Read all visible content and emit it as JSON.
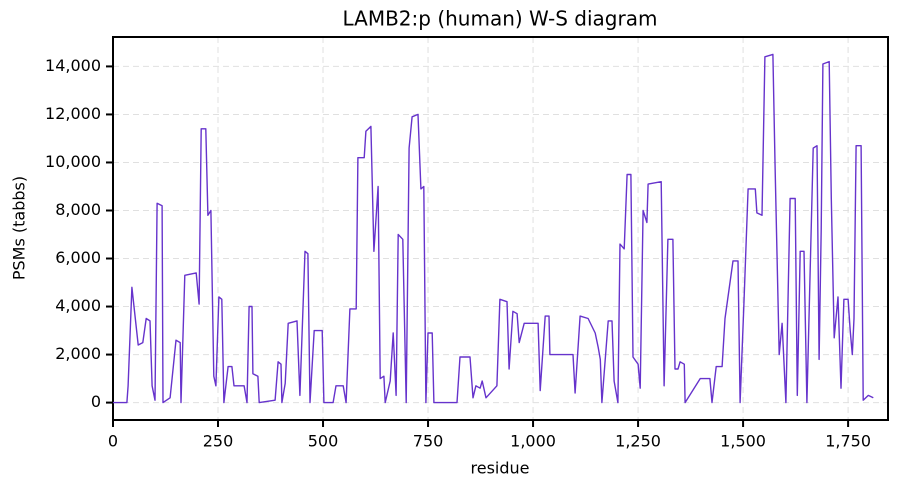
{
  "chart_data": {
    "type": "line",
    "title": "LAMB2:p (human) W-S diagram",
    "xlabel": "residue",
    "ylabel": "PSMs (tabbs)",
    "x": [
      0,
      33,
      36,
      45,
      60,
      71,
      79,
      88,
      93,
      100,
      105,
      117,
      119,
      136,
      150,
      160,
      162,
      171,
      198,
      205,
      210,
      221,
      226,
      233,
      240,
      245,
      252,
      259,
      264,
      274,
      283,
      288,
      312,
      319,
      324,
      331,
      333,
      345,
      348,
      386,
      393,
      400,
      402,
      410,
      417,
      438,
      445,
      457,
      464,
      469,
      479,
      498,
      502,
      524,
      531,
      548,
      555,
      564,
      579,
      583,
      598,
      602,
      614,
      621,
      631,
      636,
      645,
      648,
      660,
      667,
      674,
      679,
      690,
      698,
      705,
      712,
      726,
      733,
      740,
      745,
      750,
      760,
      764,
      819,
      826,
      850,
      857,
      864,
      874,
      879,
      888,
      914,
      921,
      938,
      943,
      952,
      962,
      967,
      979,
      1012,
      1017,
      1029,
      1038,
      1040,
      1095,
      1100,
      1112,
      1131,
      1148,
      1155,
      1160,
      1164,
      1179,
      1188,
      1193,
      1202,
      1207,
      1217,
      1224,
      1233,
      1238,
      1250,
      1255,
      1262,
      1271,
      1274,
      1305,
      1312,
      1321,
      1333,
      1338,
      1345,
      1350,
      1360,
      1362,
      1398,
      1421,
      1426,
      1436,
      1450,
      1457,
      1476,
      1488,
      1493,
      1502,
      1512,
      1529,
      1533,
      1545,
      1552,
      1571,
      1576,
      1586,
      1593,
      1602,
      1612,
      1624,
      1629,
      1636,
      1645,
      1652,
      1667,
      1676,
      1681,
      1686,
      1690,
      1705,
      1710,
      1717,
      1726,
      1733,
      1740,
      1750,
      1755,
      1760,
      1764,
      1769,
      1781,
      1786,
      1798,
      1810
    ],
    "series": [
      {
        "color": "#6633cc",
        "values": [
          0,
          0,
          700,
          4800,
          2400,
          2500,
          3500,
          3400,
          700,
          100,
          8300,
          8200,
          0,
          200,
          2600,
          2500,
          0,
          5300,
          5400,
          4100,
          11400,
          11400,
          7800,
          8000,
          1100,
          700,
          4400,
          4300,
          0,
          1500,
          1500,
          700,
          700,
          0,
          4000,
          4000,
          1200,
          1100,
          0,
          100,
          1700,
          1600,
          0,
          800,
          3300,
          3400,
          300,
          6300,
          6200,
          0,
          3000,
          3000,
          0,
          0,
          700,
          700,
          0,
          3900,
          3900,
          10200,
          10200,
          11300,
          11500,
          6300,
          9000,
          1000,
          1100,
          0,
          900,
          2900,
          300,
          7000,
          6800,
          0,
          10600,
          11900,
          12000,
          8900,
          9000,
          0,
          2900,
          2900,
          0,
          0,
          1900,
          1900,
          200,
          700,
          600,
          900,
          200,
          700,
          4300,
          4200,
          1400,
          3800,
          3700,
          2500,
          3300,
          3300,
          500,
          3600,
          3600,
          2000,
          2000,
          400,
          3600,
          3500,
          2900,
          2300,
          1800,
          0,
          3400,
          3400,
          900,
          0,
          6600,
          6400,
          9500,
          9500,
          1900,
          1600,
          600,
          8000,
          7500,
          9100,
          9200,
          700,
          6800,
          6800,
          1400,
          1400,
          1700,
          1600,
          0,
          1000,
          1000,
          0,
          1500,
          1500,
          3500,
          5900,
          5900,
          0,
          4100,
          8900,
          8900,
          7900,
          7800,
          14400,
          14500,
          10000,
          2000,
          3300,
          0,
          8500,
          8500,
          300,
          6300,
          6300,
          0,
          10600,
          10700,
          1800,
          7200,
          14100,
          14200,
          8500,
          2700,
          4400,
          600,
          4300,
          4300,
          3000,
          2000,
          3500,
          10700,
          10700,
          100,
          300,
          200
        ]
      }
    ],
    "xlim": [
      0,
      1845
    ],
    "ylim": [
      -725,
      15225
    ],
    "xticks": [
      0,
      250,
      500,
      750,
      {
        "value": 1000,
        "label": "1,000"
      },
      {
        "value": 1250,
        "label": "1,250"
      },
      {
        "value": 1500,
        "label": "1,500"
      },
      {
        "value": 1750,
        "label": "1,750"
      }
    ],
    "yticks": [
      0,
      {
        "value": 2000,
        "label": "2,000"
      },
      {
        "value": 4000,
        "label": "4,000"
      },
      {
        "value": 6000,
        "label": "6,000"
      },
      {
        "value": 8000,
        "label": "8,000"
      },
      {
        "value": 10000,
        "label": "10,000"
      },
      {
        "value": 12000,
        "label": "12,000"
      },
      {
        "value": 14000,
        "label": "14,000"
      }
    ],
    "grid": true
  }
}
